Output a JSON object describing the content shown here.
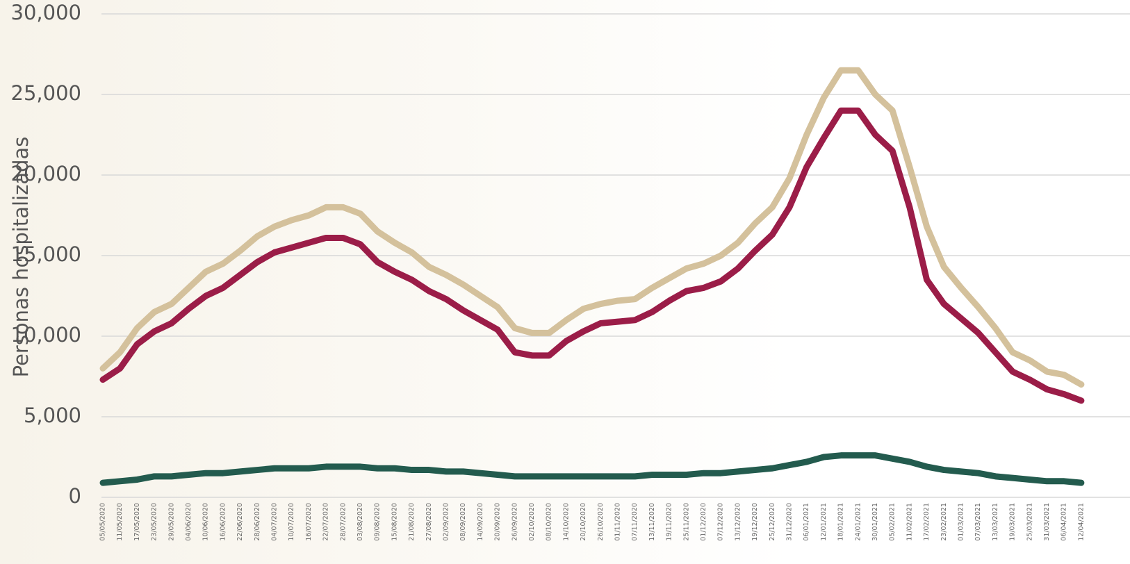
{
  "chart_data": {
    "type": "line",
    "y_label": "Personas hospitalizadas",
    "categories": [
      "05/05/2020",
      "11/05/2020",
      "17/05/2020",
      "23/05/2020",
      "29/05/2020",
      "04/06/2020",
      "10/06/2020",
      "16/06/2020",
      "22/06/2020",
      "28/06/2020",
      "04/07/2020",
      "10/07/2020",
      "16/07/2020",
      "22/07/2020",
      "28/07/2020",
      "03/08/2020",
      "09/08/2020",
      "15/08/2020",
      "21/08/2020",
      "27/08/2020",
      "02/09/2020",
      "08/09/2020",
      "14/09/2020",
      "20/09/2020",
      "26/09/2020",
      "02/10/2020",
      "08/10/2020",
      "14/10/2020",
      "20/10/2020",
      "26/10/2020",
      "01/11/2020",
      "07/11/2020",
      "13/11/2020",
      "19/11/2020",
      "25/11/2020",
      "01/12/2020",
      "07/12/2020",
      "13/12/2020",
      "19/12/2020",
      "25/12/2020",
      "31/12/2020",
      "06/01/2021",
      "12/01/2021",
      "18/01/2021",
      "24/01/2021",
      "30/01/2021",
      "05/02/2021",
      "11/02/2021",
      "17/02/2021",
      "23/02/2021",
      "01/03/2021",
      "07/03/2021",
      "13/03/2021",
      "19/03/2021",
      "25/03/2021",
      "31/03/2021",
      "06/04/2021",
      "12/04/2021"
    ],
    "series": [
      {
        "color": "#d4c19c",
        "values": [
          8000,
          9000,
          10500,
          11500,
          12000,
          13000,
          14000,
          14500,
          15300,
          16200,
          16800,
          17200,
          17500,
          18000,
          18000,
          17600,
          16500,
          15800,
          15200,
          14300,
          13800,
          13200,
          12500,
          11800,
          10500,
          10200,
          10200,
          11000,
          11700,
          12000,
          12200,
          12300,
          13000,
          13600,
          14200,
          14500,
          15000,
          15800,
          17000,
          18000,
          19800,
          22500,
          24800,
          26500,
          26500,
          25000,
          24000,
          20500,
          16800,
          14300,
          13000,
          11800,
          10500,
          9000,
          8500,
          7800,
          7600,
          7000
        ]
      },
      {
        "color": "#9b1d48",
        "values": [
          7300,
          8000,
          9500,
          10300,
          10800,
          11700,
          12500,
          13000,
          13800,
          14600,
          15200,
          15500,
          15800,
          16100,
          16100,
          15700,
          14600,
          14000,
          13500,
          12800,
          12300,
          11600,
          11000,
          10400,
          9000,
          8800,
          8800,
          9700,
          10300,
          10800,
          10900,
          11000,
          11500,
          12200,
          12800,
          13000,
          13400,
          14200,
          15300,
          16300,
          18000,
          20500,
          22300,
          24000,
          24000,
          22500,
          21500,
          18000,
          13500,
          12000,
          11100,
          10200,
          9000,
          7800,
          7300,
          6700,
          6400,
          6000
        ]
      },
      {
        "color": "#235b4e",
        "values": [
          900,
          1000,
          1100,
          1300,
          1300,
          1400,
          1500,
          1500,
          1600,
          1700,
          1800,
          1800,
          1800,
          1900,
          1900,
          1900,
          1800,
          1800,
          1700,
          1700,
          1600,
          1600,
          1500,
          1400,
          1300,
          1300,
          1300,
          1300,
          1300,
          1300,
          1300,
          1300,
          1400,
          1400,
          1400,
          1500,
          1500,
          1600,
          1700,
          1800,
          2000,
          2200,
          2500,
          2600,
          2600,
          2600,
          2400,
          2200,
          1900,
          1700,
          1600,
          1500,
          1300,
          1200,
          1100,
          1000,
          1000,
          900
        ]
      }
    ],
    "ylim": [
      0,
      30000
    ],
    "yticks": [
      0,
      {
        "value": 5000,
        "label": "5,000"
      },
      {
        "value": 10000,
        "label": "10,000"
      },
      {
        "value": 15000,
        "label": "15,000"
      },
      {
        "value": 20000,
        "label": "20,000"
      },
      {
        "value": 25000,
        "label": "25,000"
      },
      {
        "value": 30000,
        "label": "30,000"
      }
    ],
    "grid": true
  }
}
